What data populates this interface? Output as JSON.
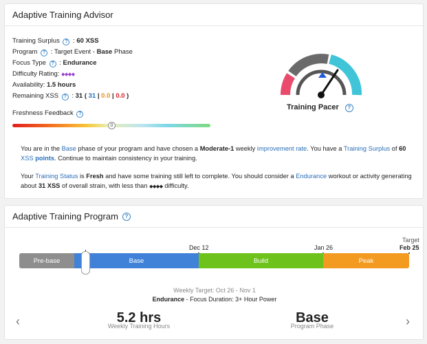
{
  "advisor": {
    "title": "Adaptive Training Advisor",
    "surplus_label": "Training Surplus",
    "surplus_value": "60 XSS",
    "program_label": "Program",
    "program_event": "Target Event",
    "program_dash": " - ",
    "program_phase": "Base",
    "program_phase_suffix": " Phase",
    "focus_label": "Focus Type",
    "focus_value": "Endurance",
    "difficulty_label": "Difficulty Rating:",
    "difficulty_glyphs": "◆◆◆◆",
    "availability_label": "Availability:",
    "availability_value": "1.5 hours",
    "remaining_label": "Remaining XSS",
    "remaining_total": "31",
    "remaining_a": "31",
    "remaining_b": "0.0",
    "remaining_c": "0.0",
    "freshness_label": "Freshness Feedback",
    "freshness_knob": "0",
    "pacer_label": "Training Pacer",
    "para1": {
      "t1": "You are in the ",
      "phase": "Base",
      "t2": " phase of your program and have chosen a ",
      "rate_name": "Moderate-1",
      "t3": " weekly ",
      "rate_label": "improvement rate",
      "t4": ". You have a ",
      "surplus_label": "Training Surplus",
      "t5": " of ",
      "surplus_value": "60",
      "xss": "XSS",
      "points": "points",
      "t6": ". Continue to maintain consistency in your training."
    },
    "para2": {
      "t1": "Your ",
      "status_label": "Training Status",
      "t2": " is ",
      "status_value": "Fresh",
      "t3": " and have some training still left to complete. You should consider a ",
      "focus": "Endurance",
      "t4": " workout or activity generating about ",
      "xss_value": "31 XSS",
      "t5": " of overall strain, with less than ",
      "glyphs": "◆◆◆◆",
      "t6": " difficulty."
    }
  },
  "program": {
    "title": "Adaptive Training Program",
    "phases": [
      {
        "label": "Pre-base",
        "color": "#8e8e8e"
      },
      {
        "label": "Base",
        "color": "#3f82d8"
      },
      {
        "label": "Build",
        "color": "#6dc21c"
      },
      {
        "label": "Peak",
        "color": "#f29b20"
      }
    ],
    "markers": {
      "dec": "Dec 12",
      "jan": "Jan 26",
      "target_label": "Target",
      "feb": "Feb 25"
    },
    "weekly_target": "Weekly Target: Oct 26 - Nov 1",
    "focus_bold": "Endurance",
    "focus_rest": " - Focus Duration: 3+ Hour Power",
    "hours_value": "5.2 hrs",
    "hours_label": "Weekly Training Hours",
    "phase_value": "Base",
    "phase_label": "Program Phase",
    "prev_glyph": "‹",
    "next_glyph": "›"
  }
}
